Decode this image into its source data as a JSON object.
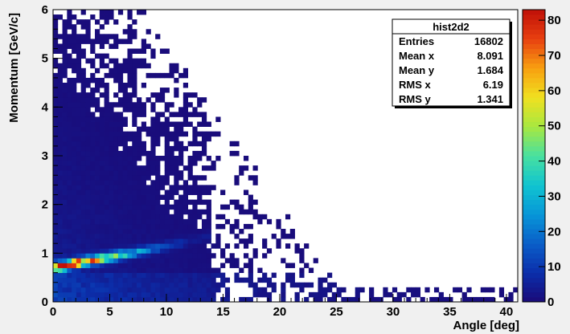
{
  "chart_data": {
    "type": "heatmap",
    "title": "",
    "xlabel": "Angle [deg]",
    "ylabel": "Momentum [GeV/c]",
    "xlim": [
      0,
      41
    ],
    "ylim": [
      0,
      6
    ],
    "x_ticks": [
      "0",
      "5",
      "10",
      "15",
      "20",
      "25",
      "30",
      "35",
      "40"
    ],
    "y_ticks": [
      "0",
      "1",
      "2",
      "3",
      "4",
      "5",
      "6"
    ],
    "colorbar": {
      "range": [
        0,
        83
      ],
      "ticks": [
        "0",
        "10",
        "20",
        "30",
        "40",
        "50",
        "60",
        "70",
        "80"
      ],
      "palette": [
        "#1a0a78",
        "#0b2eaa",
        "#0a5ec8",
        "#0796d8",
        "#10c4d0",
        "#48e0a0",
        "#a8e840",
        "#f0e020",
        "#f8a010",
        "#e84010",
        "#c01008"
      ]
    },
    "ridge": {
      "description_points": [
        [
          0.0,
          0.7,
          75
        ],
        [
          2.0,
          0.8,
          70
        ],
        [
          4.0,
          0.88,
          55
        ],
        [
          6.0,
          0.97,
          35
        ],
        [
          8.0,
          1.05,
          20
        ],
        [
          10.0,
          1.15,
          10
        ],
        [
          12.0,
          1.25,
          5
        ]
      ]
    },
    "stats_box": {
      "name": "hist2d2",
      "rows": [
        {
          "label": "Entries",
          "value": "16802"
        },
        {
          "label": "Mean x",
          "value": "8.091"
        },
        {
          "label": "Mean y",
          "value": "1.684"
        },
        {
          "label": "RMS x",
          "value": "6.19"
        },
        {
          "label": "RMS y",
          "value": "1.341"
        }
      ]
    }
  }
}
